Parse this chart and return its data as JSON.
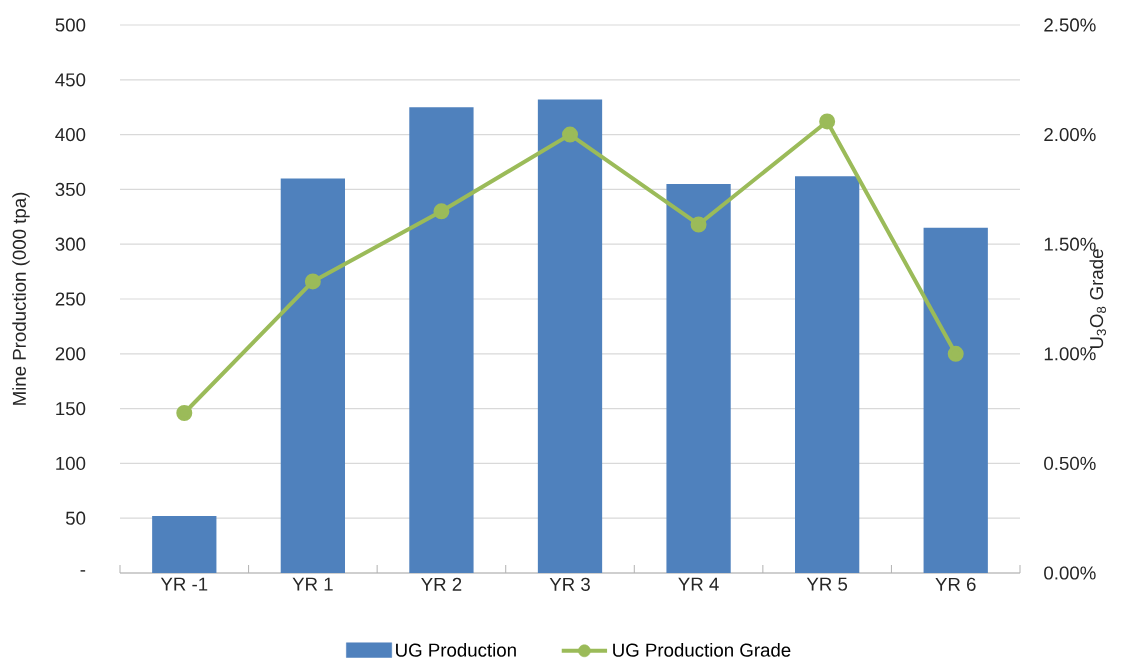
{
  "chart_data": {
    "type": "bar",
    "categories": [
      "YR -1",
      "YR 1",
      "YR 2",
      "YR 3",
      "YR 4",
      "YR 5",
      "YR 6"
    ],
    "series": [
      {
        "name": "UG Production",
        "color": "#4f81bd",
        "values": [
          52,
          360,
          425,
          432,
          355,
          362,
          315
        ]
      },
      {
        "name": "UG Production Grade",
        "type": "line",
        "axis": "y2",
        "color": "#9bbb59",
        "marker": "circle",
        "values": [
          0.73,
          1.33,
          1.65,
          2.0,
          1.59,
          2.06,
          1.0
        ]
      }
    ],
    "ylabel": "Mine Production (000 tpa)",
    "y2label": "U$_{3}$O$_{8}$ Grade",
    "ylim": [
      0,
      500
    ],
    "yticks": [
      {
        "value": 0,
        "label": "-"
      },
      50,
      100,
      150,
      200,
      250,
      300,
      350,
      400,
      450,
      500
    ],
    "y2lim": [
      0,
      2.5
    ],
    "y2ticks": [
      {
        "value": 0,
        "label": "0.00%"
      },
      {
        "value": 0.5,
        "label": "0.50%"
      },
      {
        "value": 1.0,
        "label": "1.00%"
      },
      {
        "value": 1.5,
        "label": "1.50%"
      },
      {
        "value": 2.0,
        "label": "2.00%"
      },
      {
        "value": 2.5,
        "label": "2.50%"
      }
    ],
    "grid": "y",
    "legend": "bottom"
  }
}
